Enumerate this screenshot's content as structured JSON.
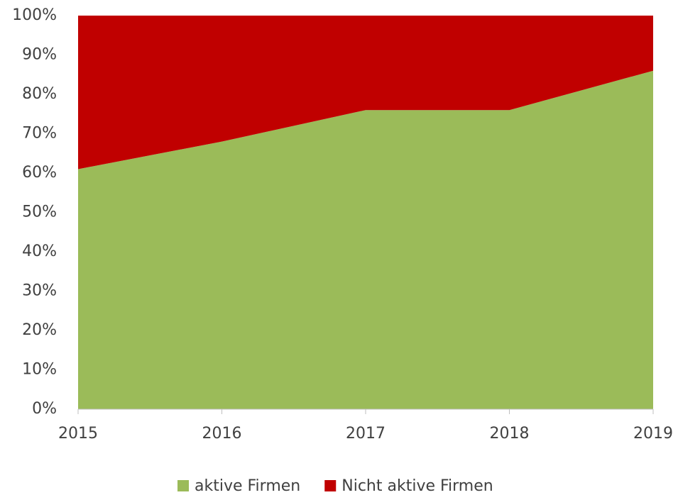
{
  "chart_data": {
    "type": "stacked_area",
    "categories": [
      "2015",
      "2016",
      "2017",
      "2018",
      "2019"
    ],
    "series": [
      {
        "name": "aktive Firmen",
        "color": "#9bbb59",
        "values": [
          61,
          68,
          76,
          76,
          86
        ]
      },
      {
        "name": "Nicht aktive Firmen",
        "color": "#c00000",
        "values": [
          39,
          32,
          24,
          24,
          14
        ]
      }
    ],
    "ylim": [
      0,
      100
    ],
    "yticks": [
      {
        "value": 0,
        "label": "0%"
      },
      {
        "value": 10,
        "label": "10%"
      },
      {
        "value": 20,
        "label": "20%"
      },
      {
        "value": 30,
        "label": "30%"
      },
      {
        "value": 40,
        "label": "40%"
      },
      {
        "value": 50,
        "label": "50%"
      },
      {
        "value": 60,
        "label": "60%"
      },
      {
        "value": 70,
        "label": "70%"
      },
      {
        "value": 80,
        "label": "80%"
      },
      {
        "value": 90,
        "label": "90%"
      },
      {
        "value": 100,
        "label": "100%"
      }
    ],
    "legend": "bottom"
  }
}
